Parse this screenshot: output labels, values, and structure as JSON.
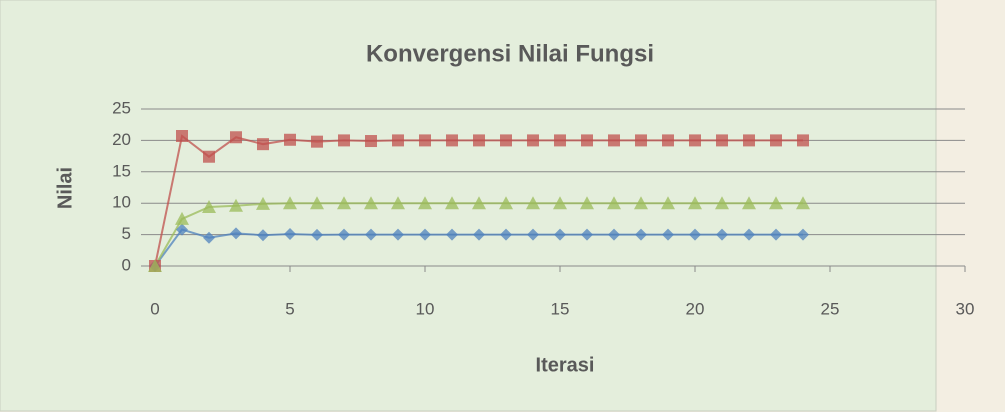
{
  "chart_data": {
    "type": "scatter-line",
    "title": "Konvergensi Nilai Fungsi",
    "xlabel": "Iterasi",
    "ylabel": "Nilai",
    "x": [
      0,
      1,
      2,
      3,
      4,
      5,
      6,
      7,
      8,
      9,
      10,
      11,
      12,
      13,
      14,
      15,
      16,
      17,
      18,
      19,
      20,
      21,
      22,
      23,
      24
    ],
    "series": [
      {
        "color": "#4f81bd",
        "marker": "diamond",
        "values": [
          0,
          5.8,
          4.5,
          5.2,
          4.9,
          5.1,
          4.95,
          5,
          5,
          5,
          5,
          5,
          5,
          5,
          5,
          5,
          5,
          5,
          5,
          5,
          5,
          5,
          5,
          5,
          5
        ]
      },
      {
        "color": "#c0504d",
        "marker": "square",
        "values": [
          0,
          20.7,
          17.4,
          20.5,
          19.4,
          20.1,
          19.8,
          20,
          19.9,
          20,
          20,
          20,
          20,
          20,
          20,
          20,
          20,
          20,
          20,
          20,
          20,
          20,
          20,
          20,
          20
        ]
      },
      {
        "color": "#9bbb59",
        "marker": "triangle",
        "values": [
          0,
          7.5,
          9.4,
          9.6,
          9.9,
          10,
          10,
          10,
          10,
          10,
          10,
          10,
          10,
          10,
          10,
          10,
          10,
          10,
          10,
          10,
          10,
          10,
          10,
          10,
          10
        ]
      }
    ],
    "xlim": [
      0,
      30
    ],
    "xticks": [
      0,
      5,
      10,
      15,
      20,
      25,
      30
    ],
    "ylim": [
      0,
      25
    ],
    "yticks": [
      0,
      5,
      10,
      15,
      20,
      25
    ],
    "grid": true
  }
}
